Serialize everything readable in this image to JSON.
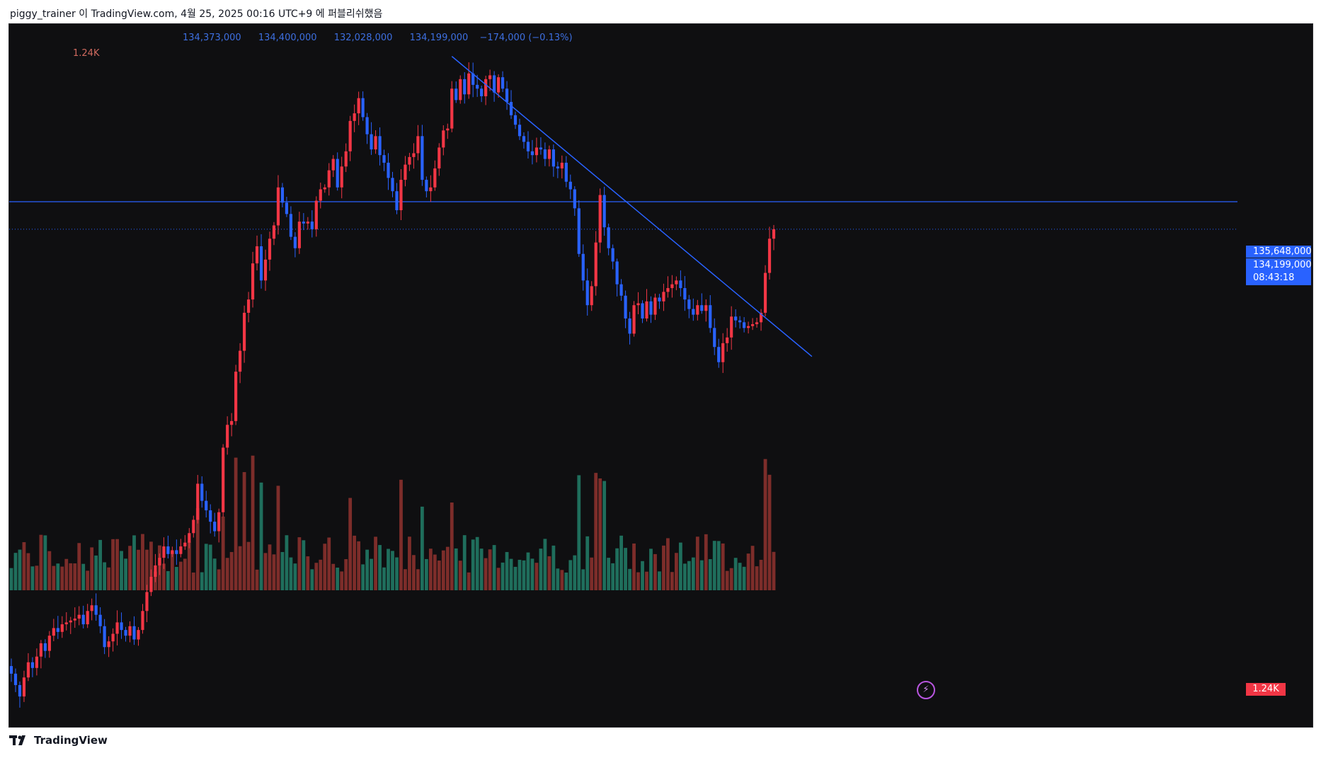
{
  "header": {
    "publish_line": "piggy_trainer 이 TradingView.com, 4월 25, 2025 00:16 UTC+9 에 퍼블리쉬했음"
  },
  "legend": {
    "open": "134,373,000",
    "high": "134,400,000",
    "low": "132,028,000",
    "close": "134,199,000",
    "change": "−174,000 (−0.13%)",
    "volume_value": "1.24K"
  },
  "price_scale": {
    "horizontal_line_label": "135,648,000",
    "last_price_label": "134,199,000",
    "countdown_label": "08:43:18",
    "volume_label": "1.24K"
  },
  "footer": {
    "brand": "TradingView"
  },
  "colors": {
    "up": "#f23645",
    "down": "#2962ff",
    "vol_up": "#7d2d2a",
    "vol_down": "#1f6e5c",
    "trendline": "#2962ff",
    "hline": "#2962ff"
  },
  "icons": [
    "lightning-icon",
    "tradingview-logo-icon"
  ],
  "chart_data": {
    "type": "candlestick",
    "ylim": [
      108000000,
      145000000
    ],
    "horizontal_line": 135648000,
    "last_price": 134199000,
    "trendline": {
      "start_index": 104,
      "start_price": 143300000,
      "end_index": 189,
      "end_price": 127500000
    },
    "closes": [
      110800000,
      110200000,
      109600000,
      110600000,
      111400000,
      111100000,
      111700000,
      112400000,
      112000000,
      112800000,
      113200000,
      113000000,
      113400000,
      113500000,
      113600000,
      113700000,
      113900000,
      113400000,
      114100000,
      114400000,
      113900000,
      113300000,
      112200000,
      112500000,
      112900000,
      113500000,
      113100000,
      112800000,
      113300000,
      112600000,
      113100000,
      114100000,
      115100000,
      115900000,
      116500000,
      116900000,
      117500000,
      117100000,
      117300000,
      117100000,
      117500000,
      117700000,
      118200000,
      118900000,
      120800000,
      119900000,
      119400000,
      118800000,
      118300000,
      119300000,
      122700000,
      123900000,
      124100000,
      126700000,
      127800000,
      129800000,
      130500000,
      132400000,
      133300000,
      131500000,
      132600000,
      133700000,
      134400000,
      136400000,
      135600000,
      135000000,
      133800000,
      133200000,
      134600000,
      134500000,
      134600000,
      134200000,
      135700000,
      136300000,
      136400000,
      137300000,
      137900000,
      136400000,
      137500000,
      138300000,
      139900000,
      140300000,
      141100000,
      140100000,
      139200000,
      138400000,
      139100000,
      138100000,
      137700000,
      136900000,
      136200000,
      135200000,
      136800000,
      137600000,
      138000000,
      138200000,
      139100000,
      136800000,
      136200000,
      136400000,
      137400000,
      138500000,
      139400000,
      139500000,
      141600000,
      141000000,
      142100000,
      141300000,
      142400000,
      141800000,
      141600000,
      141200000,
      142100000,
      142300000,
      141400000,
      142200000,
      141600000,
      140900000,
      140200000,
      139700000,
      139100000,
      138800000,
      138300000,
      138100000,
      138500000,
      138400000,
      137900000,
      138400000,
      137500000,
      137400000,
      137700000,
      136700000,
      136300000,
      135300000,
      132900000,
      131500000,
      130200000,
      131200000,
      133500000,
      136000000,
      134300000,
      133200000,
      132500000,
      131300000,
      130700000,
      129500000,
      128700000,
      130200000,
      130300000,
      129500000,
      130400000,
      129700000,
      130600000,
      130400000,
      130900000,
      131100000,
      131300000,
      131500000,
      131100000,
      130500000,
      130000000,
      129700000,
      130200000,
      129900000,
      130200000,
      129000000,
      128000000,
      127200000,
      128200000,
      128500000,
      129600000,
      129400000,
      129300000,
      129000000,
      129100000,
      129200000,
      129300000,
      129800000,
      131900000,
      133700000,
      134199000
    ]
  }
}
